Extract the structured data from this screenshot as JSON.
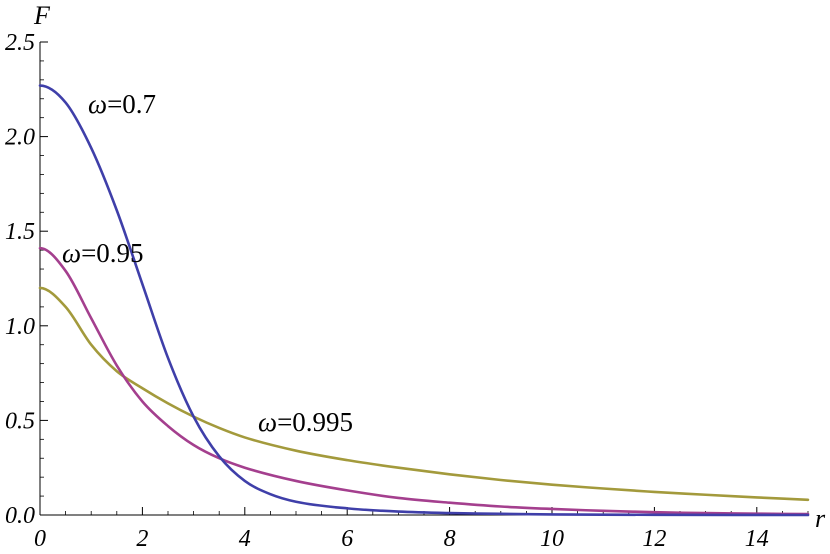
{
  "chart_data": {
    "type": "line",
    "xlabel": "r",
    "ylabel": "F",
    "xlim": [
      0,
      15
    ],
    "ylim": [
      0,
      2.5
    ],
    "xticks": [
      0,
      2,
      4,
      6,
      8,
      10,
      12,
      14
    ],
    "yticks": [
      0.0,
      0.5,
      1.0,
      1.5,
      2.0,
      2.5
    ],
    "xtick_labels": [
      "0",
      "2",
      "4",
      "6",
      "8",
      "10",
      "12",
      "14"
    ],
    "ytick_labels": [
      "0.0",
      "0.5",
      "1.0",
      "1.5",
      "2.0",
      "2.5"
    ],
    "grid": false,
    "series": [
      {
        "omega_symbol": "ω",
        "omega_value": "=0.7",
        "color": "#3f3fa9",
        "x": [
          0,
          0.5,
          1,
          1.5,
          2,
          2.5,
          3,
          3.5,
          4,
          4.5,
          5,
          6,
          7,
          8,
          9,
          10,
          12,
          15
        ],
        "y": [
          2.27,
          2.18,
          1.94,
          1.61,
          1.22,
          0.83,
          0.52,
          0.31,
          0.18,
          0.11,
          0.07,
          0.035,
          0.018,
          0.01,
          0.006,
          0.003,
          0.001,
          0.0
        ]
      },
      {
        "omega_symbol": "ω",
        "omega_value": "=0.95",
        "color": "#a43f8e",
        "x": [
          0,
          0.5,
          1,
          1.5,
          2,
          2.5,
          3,
          3.5,
          4,
          5,
          6,
          7,
          8,
          9,
          10,
          11,
          12,
          13,
          14,
          15
        ],
        "y": [
          1.41,
          1.29,
          1.04,
          0.79,
          0.6,
          0.47,
          0.37,
          0.3,
          0.25,
          0.18,
          0.13,
          0.09,
          0.065,
          0.045,
          0.032,
          0.022,
          0.015,
          0.01,
          0.007,
          0.005
        ]
      },
      {
        "omega_symbol": "ω",
        "omega_value": "=0.995",
        "color": "#a39a3c",
        "x": [
          0,
          0.5,
          1,
          1.5,
          2,
          2.5,
          3,
          3.5,
          4,
          5,
          6,
          7,
          8,
          9,
          10,
          11,
          12,
          13,
          14,
          15
        ],
        "y": [
          1.2,
          1.1,
          0.9,
          0.76,
          0.67,
          0.59,
          0.52,
          0.46,
          0.41,
          0.34,
          0.29,
          0.25,
          0.215,
          0.185,
          0.16,
          0.14,
          0.122,
          0.107,
          0.093,
          0.08
        ]
      }
    ]
  }
}
